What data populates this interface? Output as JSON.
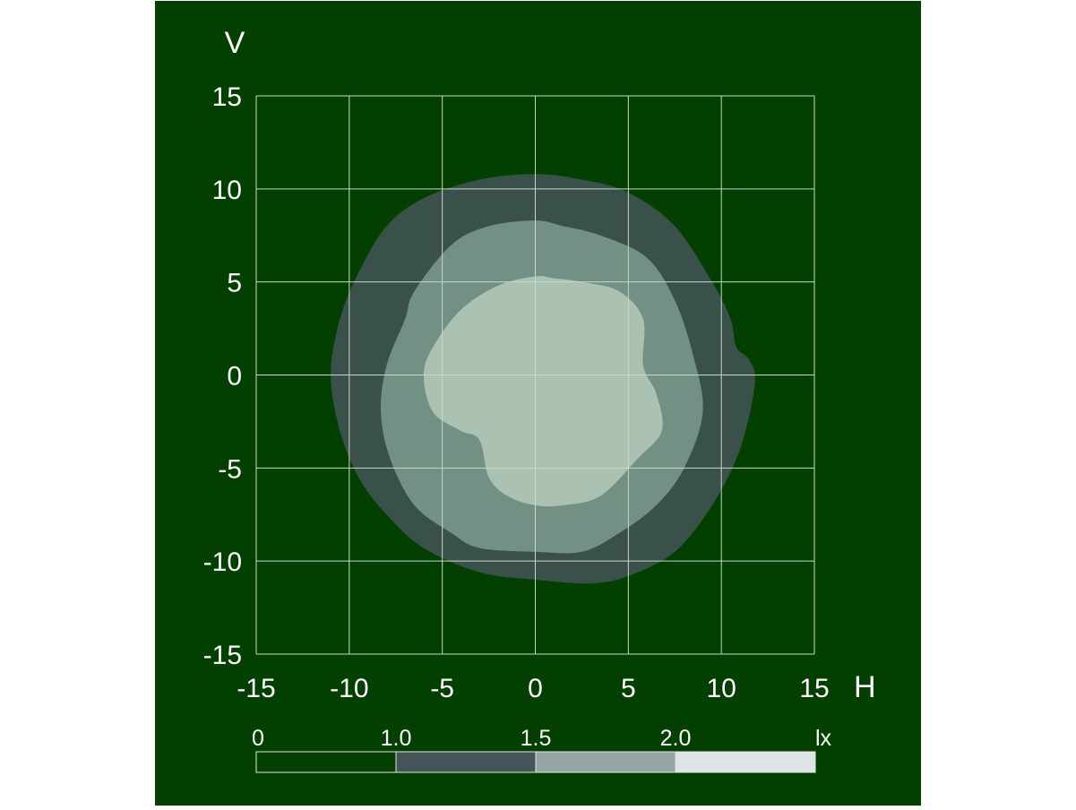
{
  "colors": {
    "background": "#034000",
    "grid": "#c8d8c8",
    "text": "#ffffff"
  },
  "chart_data": {
    "type": "contour",
    "xlabel": "H",
    "ylabel": "V",
    "xlim": [
      -15,
      15
    ],
    "ylim": [
      -15,
      15
    ],
    "grid": true,
    "x_ticks": [
      -15,
      -10,
      -5,
      0,
      5,
      10,
      15
    ],
    "y_ticks": [
      15,
      10,
      5,
      0,
      -5,
      -10,
      -15
    ],
    "x_tick_labels": [
      "-15",
      "-10",
      "-5",
      "0",
      "5",
      "10",
      "15"
    ],
    "y_tick_labels": [
      "15",
      "10",
      "5",
      "0",
      "-5",
      "-10",
      "-15"
    ],
    "colorbar": {
      "unit": "lx",
      "tick_labels": [
        "0",
        "1.0",
        "1.5",
        "2.0"
      ],
      "ticks": [
        0,
        1.0,
        1.5,
        2.0
      ],
      "max": 2.5,
      "bands": [
        {
          "from": 0,
          "to": 1.0,
          "color": "#034000"
        },
        {
          "from": 1.0,
          "to": 1.5,
          "color": "#44555a"
        },
        {
          "from": 1.5,
          "to": 2.0,
          "color": "#93a5a5"
        },
        {
          "from": 2.0,
          "to": 2.5,
          "color": "#e0e4e6"
        }
      ]
    },
    "contours": [
      {
        "level": 1.0,
        "color": "#3a514b",
        "points": [
          [
            0,
            10.8
          ],
          [
            -3,
            10.5
          ],
          [
            -6,
            9.5
          ],
          [
            -8,
            8
          ],
          [
            -9.5,
            5.5
          ],
          [
            -10.5,
            3
          ],
          [
            -11,
            0
          ],
          [
            -10.5,
            -3
          ],
          [
            -9.5,
            -5.5
          ],
          [
            -8,
            -7.5
          ],
          [
            -6,
            -9.3
          ],
          [
            -3,
            -10.6
          ],
          [
            0,
            -11
          ],
          [
            3,
            -11.2
          ],
          [
            5,
            -10.8
          ],
          [
            7.5,
            -9.5
          ],
          [
            9.5,
            -7
          ],
          [
            11,
            -4
          ],
          [
            11.8,
            -0.5
          ],
          [
            11.5,
            0.8
          ],
          [
            10.8,
            1.5
          ],
          [
            10.5,
            3
          ],
          [
            9.5,
            5
          ],
          [
            7.5,
            8
          ],
          [
            5,
            9.8
          ],
          [
            2.5,
            10.5
          ]
        ]
      },
      {
        "level": 1.5,
        "color": "#729084",
        "points": [
          [
            0,
            8.3
          ],
          [
            -2.5,
            8
          ],
          [
            -4.5,
            7
          ],
          [
            -6.5,
            4.5
          ],
          [
            -7,
            3
          ],
          [
            -8,
            0.5
          ],
          [
            -8.3,
            -2
          ],
          [
            -7.8,
            -4.5
          ],
          [
            -6.5,
            -7
          ],
          [
            -4.5,
            -8.5
          ],
          [
            -3,
            -9.3
          ],
          [
            0,
            -9.5
          ],
          [
            2.5,
            -9.5
          ],
          [
            4.5,
            -8.5
          ],
          [
            6.5,
            -7
          ],
          [
            8,
            -5
          ],
          [
            9,
            -2
          ],
          [
            8.5,
            1
          ],
          [
            7.5,
            4
          ],
          [
            6,
            6.3
          ],
          [
            3.5,
            7.5
          ],
          [
            1.5,
            8
          ]
        ]
      },
      {
        "level": 2.0,
        "color": "#abc1b2",
        "points": [
          [
            0,
            5.3
          ],
          [
            -2,
            4.8
          ],
          [
            -4,
            3.5
          ],
          [
            -5.5,
            1.5
          ],
          [
            -6,
            0
          ],
          [
            -5.5,
            -2
          ],
          [
            -4,
            -3
          ],
          [
            -3,
            -3.5
          ],
          [
            -2.5,
            -5.5
          ],
          [
            -1.5,
            -6.5
          ],
          [
            0,
            -7
          ],
          [
            1.5,
            -7
          ],
          [
            3.5,
            -6.5
          ],
          [
            5.5,
            -4.5
          ],
          [
            6.8,
            -3
          ],
          [
            6.5,
            -1
          ],
          [
            5.8,
            0.5
          ],
          [
            5.8,
            3
          ],
          [
            4.5,
            4.5
          ],
          [
            2.5,
            5
          ],
          [
            1,
            5.2
          ]
        ]
      }
    ]
  }
}
